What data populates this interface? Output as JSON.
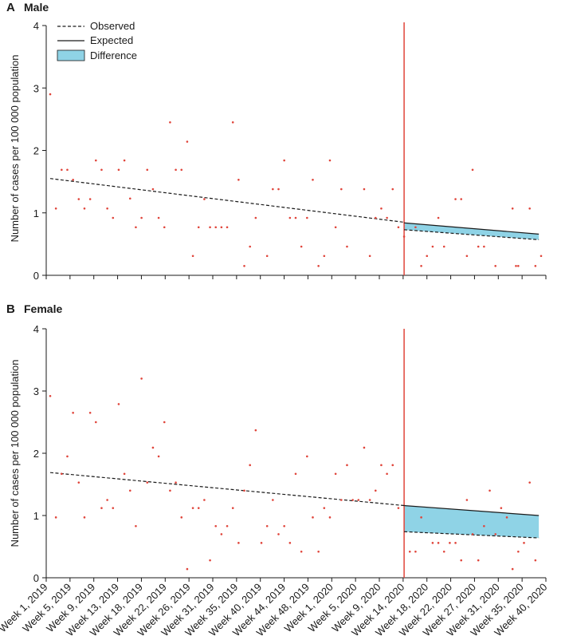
{
  "legend": {
    "observed_label": "Observed",
    "expected_label": "Expected",
    "difference_label": "Difference"
  },
  "colors": {
    "points": "#e0443a",
    "cutoff_line": "#e0443a",
    "difference_fill": "#8fd3e6",
    "lines": "#1a1a1a"
  },
  "chart_data": [
    {
      "type": "scatter",
      "panel": "A",
      "title": "Male",
      "ylabel": "Number of cases per 100 000 population",
      "xlabel": "",
      "ylim": [
        0,
        4
      ],
      "yticks": [
        0,
        1,
        2,
        3,
        4
      ],
      "n_weeks": 87,
      "cutoff_week_index": 62,
      "points": [
        [
          0,
          2.9
        ],
        [
          1,
          1.07
        ],
        [
          2,
          1.69
        ],
        [
          3,
          1.69
        ],
        [
          4,
          1.53
        ],
        [
          5,
          1.22
        ],
        [
          6,
          1.07
        ],
        [
          7,
          1.22
        ],
        [
          8,
          1.84
        ],
        [
          9,
          1.69
        ],
        [
          10,
          1.07
        ],
        [
          11,
          0.92
        ],
        [
          12,
          1.69
        ],
        [
          13,
          1.84
        ],
        [
          14,
          1.23
        ],
        [
          15,
          0.77
        ],
        [
          16,
          0.92
        ],
        [
          17,
          1.69
        ],
        [
          18,
          1.38
        ],
        [
          19,
          0.92
        ],
        [
          20,
          0.77
        ],
        [
          21,
          2.45
        ],
        [
          22,
          1.69
        ],
        [
          23,
          1.69
        ],
        [
          24,
          2.14
        ],
        [
          25,
          0.31
        ],
        [
          26,
          0.77
        ],
        [
          27,
          1.22
        ],
        [
          28,
          0.77
        ],
        [
          29,
          0.77
        ],
        [
          30,
          0.77
        ],
        [
          31,
          0.77
        ],
        [
          32,
          2.45
        ],
        [
          33,
          1.53
        ],
        [
          34,
          0.15
        ],
        [
          35,
          0.46
        ],
        [
          36,
          0.92
        ],
        [
          38,
          0.31
        ],
        [
          39,
          1.38
        ],
        [
          40,
          1.38
        ],
        [
          41,
          1.84
        ],
        [
          42,
          0.92
        ],
        [
          43,
          0.92
        ],
        [
          44,
          0.46
        ],
        [
          45,
          0.92
        ],
        [
          46,
          1.53
        ],
        [
          47,
          0.15
        ],
        [
          48,
          0.31
        ],
        [
          49,
          1.84
        ],
        [
          50,
          0.77
        ],
        [
          51,
          1.38
        ],
        [
          52,
          0.46
        ],
        [
          55,
          1.38
        ],
        [
          56,
          0.31
        ],
        [
          57,
          0.92
        ],
        [
          58,
          1.07
        ],
        [
          59,
          0.92
        ],
        [
          60,
          1.38
        ],
        [
          61,
          0.77
        ],
        [
          62,
          0.62
        ],
        [
          64,
          0.77
        ],
        [
          65,
          0.15
        ],
        [
          66,
          0.31
        ],
        [
          67,
          0.46
        ],
        [
          68,
          0.92
        ],
        [
          69,
          0.46
        ],
        [
          71,
          1.22
        ],
        [
          72,
          1.22
        ],
        [
          73,
          0.31
        ],
        [
          74,
          1.69
        ],
        [
          75,
          0.46
        ],
        [
          76,
          0.46
        ],
        [
          78,
          0.15
        ],
        [
          81,
          1.07
        ],
        [
          81.6,
          0.15
        ],
        [
          82,
          0.15
        ],
        [
          84,
          1.07
        ],
        [
          85,
          0.15
        ],
        [
          86,
          0.31
        ]
      ],
      "observed_trend": {
        "x": [
          0,
          62
        ],
        "y": [
          1.55,
          0.85
        ]
      },
      "expected_line": {
        "x": [
          62,
          85.6
        ],
        "y": [
          0.84,
          0.66
        ]
      },
      "observed_after": {
        "x": [
          62,
          85.6
        ],
        "y": [
          0.73,
          0.57
        ]
      },
      "show_legend": true,
      "legend_position": "top-left"
    },
    {
      "type": "scatter",
      "panel": "B",
      "title": "Female",
      "ylabel": "Number of cases per 100 000 population",
      "xlabel": "",
      "ylim": [
        0,
        4
      ],
      "yticks": [
        0,
        1,
        2,
        3,
        4
      ],
      "n_weeks": 87,
      "cutoff_week_index": 62,
      "points": [
        [
          0,
          2.92
        ],
        [
          1,
          0.97
        ],
        [
          2,
          1.67
        ],
        [
          3,
          1.95
        ],
        [
          4,
          2.65
        ],
        [
          5,
          1.53
        ],
        [
          6,
          0.97
        ],
        [
          7,
          2.65
        ],
        [
          8,
          2.5
        ],
        [
          9,
          1.12
        ],
        [
          10,
          1.25
        ],
        [
          11,
          1.12
        ],
        [
          12,
          2.79
        ],
        [
          13,
          1.67
        ],
        [
          14,
          1.4
        ],
        [
          15,
          0.83
        ],
        [
          16,
          3.2
        ],
        [
          17,
          1.53
        ],
        [
          18,
          2.09
        ],
        [
          19,
          1.95
        ],
        [
          20,
          2.5
        ],
        [
          21,
          1.4
        ],
        [
          22,
          1.53
        ],
        [
          23,
          0.97
        ],
        [
          24,
          0.14
        ],
        [
          25,
          1.12
        ],
        [
          26,
          1.12
        ],
        [
          27,
          1.25
        ],
        [
          28,
          0.28
        ],
        [
          29,
          0.83
        ],
        [
          30,
          0.7
        ],
        [
          31,
          0.83
        ],
        [
          32,
          1.12
        ],
        [
          33,
          0.56
        ],
        [
          34,
          1.4
        ],
        [
          35,
          1.81
        ],
        [
          36,
          2.37
        ],
        [
          37,
          0.56
        ],
        [
          38,
          0.83
        ],
        [
          39,
          1.25
        ],
        [
          40,
          0.7
        ],
        [
          41,
          0.83
        ],
        [
          42,
          0.56
        ],
        [
          43,
          1.67
        ],
        [
          44,
          0.42
        ],
        [
          45,
          1.95
        ],
        [
          46,
          0.97
        ],
        [
          47,
          0.42
        ],
        [
          48,
          1.12
        ],
        [
          49,
          0.97
        ],
        [
          50,
          1.67
        ],
        [
          51,
          1.25
        ],
        [
          52,
          1.81
        ],
        [
          53,
          1.25
        ],
        [
          54,
          1.25
        ],
        [
          55,
          2.09
        ],
        [
          56,
          1.25
        ],
        [
          57,
          1.4
        ],
        [
          58,
          1.81
        ],
        [
          59,
          1.67
        ],
        [
          60,
          1.81
        ],
        [
          61,
          1.12
        ],
        [
          63,
          0.42
        ],
        [
          64,
          0.42
        ],
        [
          65,
          0.97
        ],
        [
          67,
          0.56
        ],
        [
          68,
          0.56
        ],
        [
          69,
          0.42
        ],
        [
          70,
          0.56
        ],
        [
          71,
          0.56
        ],
        [
          72,
          0.28
        ],
        [
          73,
          1.25
        ],
        [
          74,
          0.7
        ],
        [
          75,
          0.28
        ],
        [
          76,
          0.83
        ],
        [
          77,
          1.4
        ],
        [
          78,
          0.7
        ],
        [
          79,
          1.12
        ],
        [
          80,
          0.97
        ],
        [
          81,
          0.14
        ],
        [
          82,
          0.42
        ],
        [
          83,
          0.56
        ],
        [
          84,
          1.53
        ],
        [
          85,
          0.28
        ]
      ],
      "observed_trend": {
        "x": [
          0,
          62
        ],
        "y": [
          1.69,
          1.16
        ]
      },
      "expected_line": {
        "x": [
          62,
          85.6
        ],
        "y": [
          1.16,
          1.0
        ]
      },
      "observed_after": {
        "x": [
          62,
          85.6
        ],
        "y": [
          0.74,
          0.64
        ]
      },
      "show_legend": false,
      "x_tick_labels": [
        "Week 1, 2019",
        "Week 5, 2019",
        "Week 9, 2019",
        "Week 13, 2019",
        "Week 18, 2019",
        "Week 22, 2019",
        "Week 26, 2019",
        "Week 31, 2019",
        "Week 35, 2019",
        "Week 40, 2019",
        "Week 44, 2019",
        "Week 48, 2019",
        "Week 1, 2020",
        "Week 5, 2020",
        "Week 9, 2020",
        "Week 14, 2020",
        "Week 18, 2020",
        "Week 22, 2020",
        "Week 27, 2020",
        "Week 31, 2020",
        "Week 35, 2020",
        "Week 40, 2020"
      ]
    }
  ]
}
